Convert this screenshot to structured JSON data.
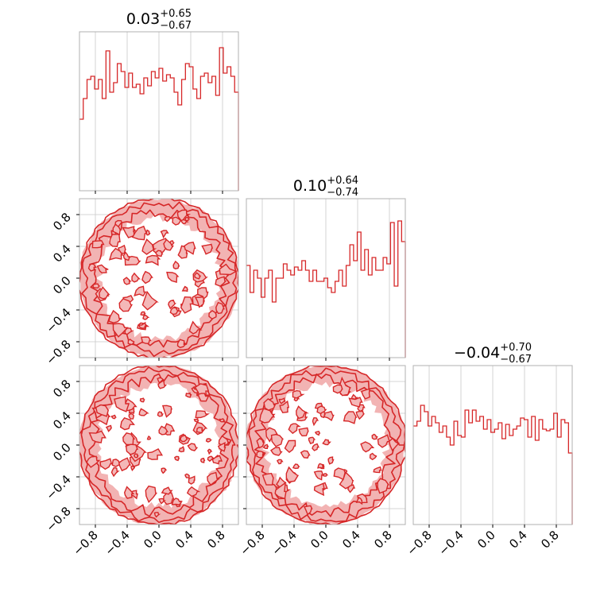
{
  "chart_data": {
    "type": "corner",
    "series_color": "#d62728",
    "tick_values": [
      -0.8,
      -0.4,
      0.0,
      0.4,
      0.8
    ],
    "tick_labels": [
      "−0.8",
      "−0.4",
      "0.0",
      "0.4",
      "0.8"
    ],
    "axis_range": [
      -1.0,
      1.0
    ],
    "grid": true,
    "params": [
      {
        "title_value": "0.03",
        "title_plus": "+0.65",
        "title_minus": "−0.67",
        "hist": [
          0.45,
          0.58,
          0.7,
          0.72,
          0.64,
          0.7,
          0.58,
          0.88,
          0.62,
          0.68,
          0.8,
          0.75,
          0.65,
          0.74,
          0.65,
          0.67,
          0.61,
          0.71,
          0.66,
          0.75,
          0.71,
          0.77,
          0.69,
          0.73,
          0.71,
          0.62,
          0.54,
          0.7,
          0.8,
          0.78,
          0.64,
          0.58,
          0.72,
          0.74,
          0.68,
          0.72,
          0.6,
          0.9,
          0.74,
          0.78,
          0.72,
          0.62
        ]
      },
      {
        "title_value": "0.10",
        "title_plus": "+0.64",
        "title_minus": "−0.74",
        "hist": [
          0.58,
          0.41,
          0.55,
          0.5,
          0.38,
          0.5,
          0.55,
          0.35,
          0.5,
          0.5,
          0.59,
          0.55,
          0.52,
          0.57,
          0.55,
          0.61,
          0.55,
          0.48,
          0.55,
          0.48,
          0.48,
          0.5,
          0.44,
          0.41,
          0.48,
          0.55,
          0.45,
          0.58,
          0.71,
          0.61,
          0.79,
          0.55,
          0.68,
          0.52,
          0.63,
          0.55,
          0.55,
          0.63,
          0.59,
          0.85,
          0.45,
          0.86,
          0.73
        ]
      },
      {
        "title_value": "−0.04",
        "title_plus": "+0.70",
        "title_minus": "−0.67",
        "hist": [
          0.62,
          0.65,
          0.75,
          0.71,
          0.62,
          0.68,
          0.64,
          0.58,
          0.62,
          0.55,
          0.5,
          0.65,
          0.56,
          0.55,
          0.72,
          0.64,
          0.72,
          0.65,
          0.68,
          0.6,
          0.66,
          0.58,
          0.6,
          0.64,
          0.54,
          0.63,
          0.56,
          0.6,
          0.62,
          0.67,
          0.66,
          0.55,
          0.68,
          0.53,
          0.66,
          0.6,
          0.59,
          0.6,
          0.7,
          0.55,
          0.66,
          0.64,
          0.45
        ]
      }
    ]
  }
}
